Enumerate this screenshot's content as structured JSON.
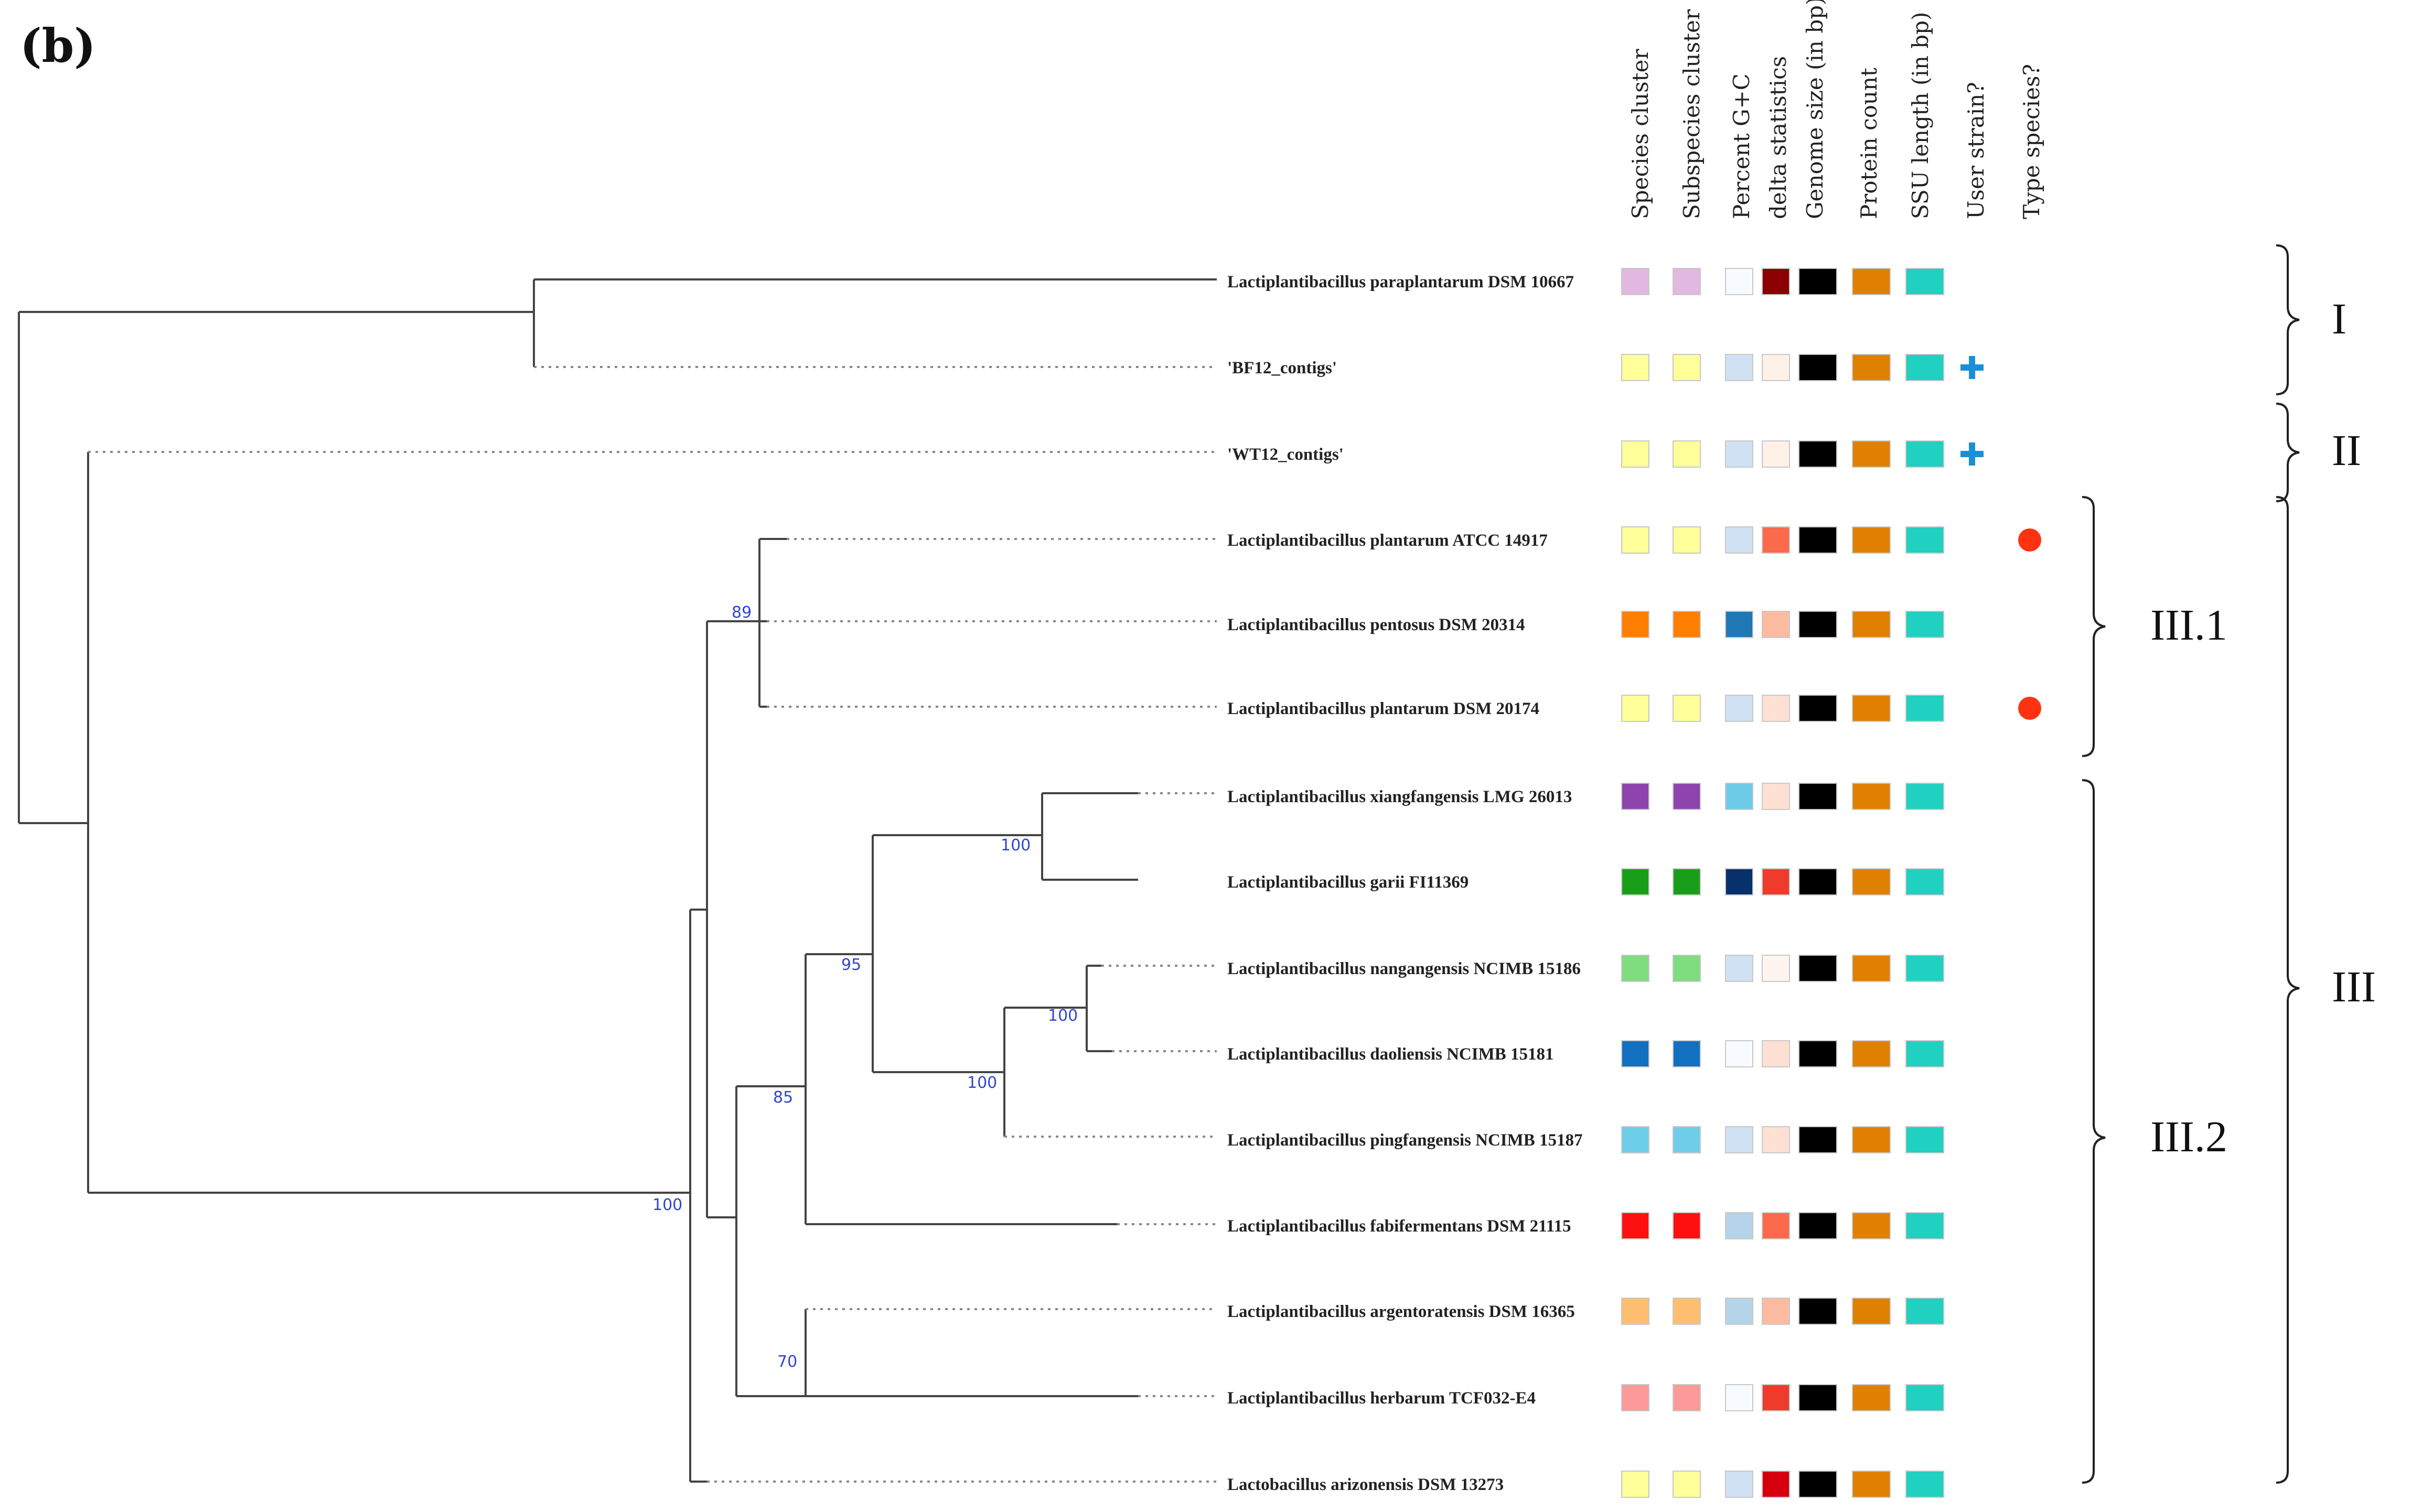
{
  "panel_label": "(b)",
  "columns": [
    "Species cluster",
    "Subspecies cluster",
    "Percent G+C",
    "delta statistics",
    "Genome size (in bp)",
    "Protein count",
    "SSU length (in bp)",
    "User strain?",
    "Type species?"
  ],
  "taxa": [
    {
      "name": "Lactiplantibacillus paraplantarum DSM 10667",
      "colors": [
        "#e0b8e0",
        "#e0b8e0",
        "#f7fbff",
        "#8b0000",
        "#000000",
        "#e08000",
        "#20d0c0"
      ],
      "user": false,
      "type": false
    },
    {
      "name": "'BF12_contigs'",
      "colors": [
        "#ffff99",
        "#ffff99",
        "#cfe1f2",
        "#fff0e8",
        "#000000",
        "#e08000",
        "#20d0c0"
      ],
      "user": true,
      "type": false
    },
    {
      "name": "'WT12_contigs'",
      "colors": [
        "#ffff99",
        "#ffff99",
        "#cfe1f2",
        "#fff0e8",
        "#000000",
        "#e08000",
        "#20d0c0"
      ],
      "user": true,
      "type": false
    },
    {
      "name": "Lactiplantibacillus plantarum ATCC 14917",
      "colors": [
        "#ffff99",
        "#ffff99",
        "#cfe1f2",
        "#fb6a4a",
        "#000000",
        "#e08000",
        "#20d0c0"
      ],
      "user": false,
      "type": true
    },
    {
      "name": "Lactiplantibacillus pentosus DSM 20314",
      "colors": [
        "#ff7f00",
        "#ff7f00",
        "#1f78b4",
        "#fcbba1",
        "#000000",
        "#e08000",
        "#20d0c0"
      ],
      "user": false,
      "type": false
    },
    {
      "name": "Lactiplantibacillus plantarum DSM 20174",
      "colors": [
        "#ffff99",
        "#ffff99",
        "#cfe1f2",
        "#fee0d2",
        "#000000",
        "#e08000",
        "#20d0c0"
      ],
      "user": false,
      "type": true
    },
    {
      "name": "Lactiplantibacillus xiangfangensis LMG 26013",
      "colors": [
        "#8e44ad",
        "#8e44ad",
        "#6ecbe8",
        "#fee0d2",
        "#000000",
        "#e08000",
        "#20d0c0"
      ],
      "user": false,
      "type": false
    },
    {
      "name": "Lactiplantibacillus garii FI11369",
      "colors": [
        "#1a9e1a",
        "#1a9e1a",
        "#08306b",
        "#ef3b2c",
        "#000000",
        "#e08000",
        "#20d0c0"
      ],
      "user": false,
      "type": false
    },
    {
      "name": "Lactiplantibacillus nangangensis NCIMB 15186",
      "colors": [
        "#7fdc7f",
        "#7fdc7f",
        "#cfe1f2",
        "#fff5f0",
        "#000000",
        "#e08000",
        "#20d0c0"
      ],
      "user": false,
      "type": false
    },
    {
      "name": "Lactiplantibacillus daoliensis NCIMB 15181",
      "colors": [
        "#1170c0",
        "#1170c0",
        "#f7fbff",
        "#fee0d2",
        "#000000",
        "#e08000",
        "#20d0c0"
      ],
      "user": false,
      "type": false
    },
    {
      "name": "Lactiplantibacillus pingfangensis NCIMB 15187",
      "colors": [
        "#6ecde8",
        "#6ecde8",
        "#cfe1f2",
        "#fee0d2",
        "#000000",
        "#e08000",
        "#20d0c0"
      ],
      "user": false,
      "type": false
    },
    {
      "name": "Lactiplantibacillus fabifermentans DSM 21115",
      "colors": [
        "#ff1010",
        "#ff1010",
        "#b5d4e9",
        "#fb6a4a",
        "#000000",
        "#e08000",
        "#20d0c0"
      ],
      "user": false,
      "type": false
    },
    {
      "name": "Lactiplantibacillus argentoratensis DSM 16365",
      "colors": [
        "#fdbf6f",
        "#fdbf6f",
        "#b5d4e9",
        "#fcbba1",
        "#000000",
        "#e08000",
        "#20d0c0"
      ],
      "user": false,
      "type": false
    },
    {
      "name": "Lactiplantibacillus herbarum TCF032-E4",
      "colors": [
        "#fb9a99",
        "#fb9a99",
        "#f7fbff",
        "#ef3b2c",
        "#000000",
        "#e08000",
        "#20d0c0"
      ],
      "user": false,
      "type": false
    },
    {
      "name": "Lactobacillus arizonensis DSM 13273",
      "colors": [
        "#ffff99",
        "#ffff99",
        "#cfe1f2",
        "#d7000f",
        "#000000",
        "#e08000",
        "#20d0c0"
      ],
      "user": false,
      "type": false
    }
  ],
  "bootstrap": [
    "89",
    "100",
    "95",
    "100",
    "100",
    "85",
    "70",
    "100"
  ],
  "clades": [
    "I",
    "II",
    "III.1",
    "III.2",
    "III"
  ],
  "marker_colors": {
    "user_strain": "#1a8fd6",
    "type_species": "#ff3311"
  }
}
